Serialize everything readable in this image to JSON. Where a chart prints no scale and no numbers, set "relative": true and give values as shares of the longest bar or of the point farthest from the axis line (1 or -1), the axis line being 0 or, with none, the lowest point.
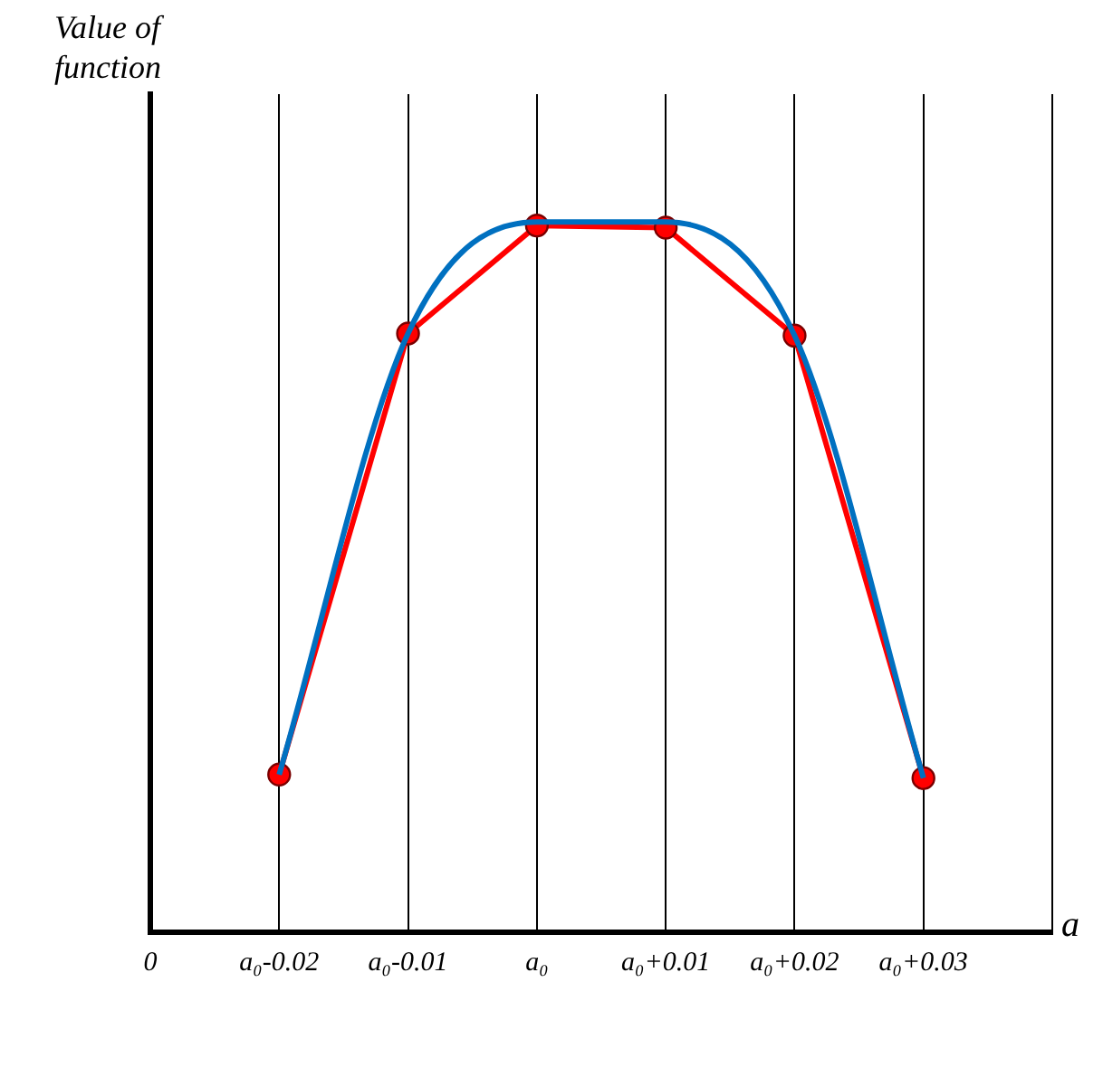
{
  "chart_data": {
    "type": "line",
    "relative": true,
    "xlabel": "a",
    "ylabel": "Value of function",
    "categories": [
      "0",
      "a₀-0.02",
      "a₀-0.01",
      "a₀",
      "a₀+0.01",
      "a₀+0.02",
      "a₀+0.03",
      null
    ],
    "grid": "x",
    "legend": false,
    "series": [
      {
        "color": "#0070c0",
        "marker": "none",
        "values": [
          null,
          0.222,
          0.843,
          1,
          1,
          0.84,
          0.217,
          null
        ]
      },
      {
        "color": "#ff0000",
        "marker": "circle",
        "values": [
          null,
          0.222,
          0.843,
          0.995,
          0.992,
          0.84,
          0.217,
          null
        ]
      }
    ]
  }
}
